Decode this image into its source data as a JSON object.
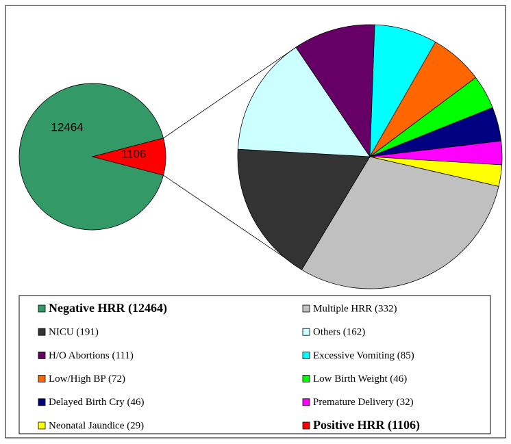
{
  "chart_data": {
    "type": "pie-of-pie",
    "categories": [
      "Negative HRR (12464)",
      "Positive HRR (1106)"
    ],
    "values": [
      12464,
      1106
    ],
    "colors": [
      "#339966",
      "#ff0000"
    ],
    "sub_categories": [
      "Multiple HRR (332)",
      "NICU (191)",
      "Others (162)",
      "H/O Abortions (111)",
      "Excessive Vomiting (85)",
      "Low/High BP (72)",
      "Low Birth Weight (46)",
      "Delayed Birth Cry (46)",
      "Premature Delivery (32)",
      "Neonatal Jaundice (29)"
    ],
    "sub_values": [
      332,
      191,
      162,
      111,
      85,
      72,
      46,
      46,
      32,
      29
    ],
    "sub_colors": [
      "#c0c0c0",
      "#333333",
      "#ccffff",
      "#660066",
      "#00ffff",
      "#ff6600",
      "#00ff00",
      "#000080",
      "#ff00ff",
      "#ffff00"
    ]
  }
}
